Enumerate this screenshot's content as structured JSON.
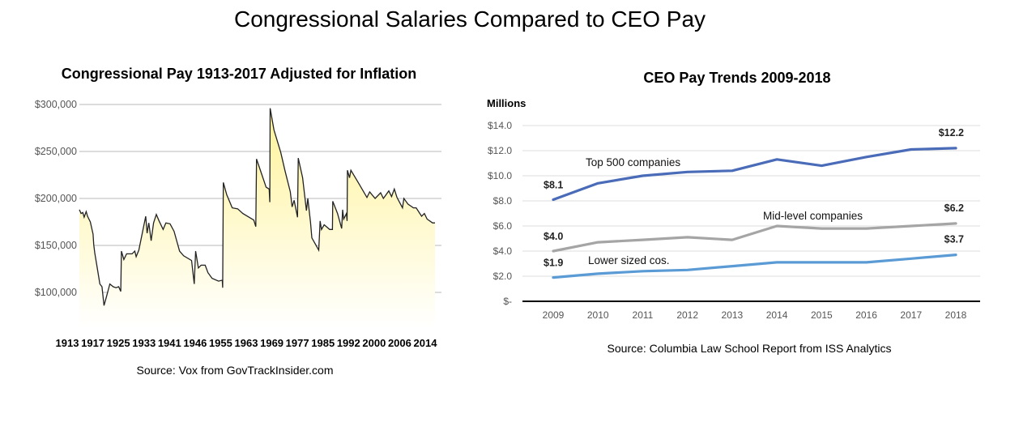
{
  "title": "Congressional Salaries Compared to CEO Pay",
  "chart_data": [
    {
      "type": "area",
      "title": "Congressional Pay 1913-2017 Adjusted for Inflation",
      "source": "Source: Vox from GovTrackInsider.com",
      "ylim": [
        60000,
        300000
      ],
      "xlim": [
        1913,
        2017
      ],
      "yticks": [
        100000,
        150000,
        200000,
        250000,
        300000
      ],
      "ytick_labels": [
        "$100,000",
        "$150,000",
        "$200,000",
        "$250,000",
        "$300,000"
      ],
      "xtick_labels": [
        "1913",
        "1917",
        "1925",
        "1933",
        "1941",
        "1946",
        "1955",
        "1963",
        "1969",
        "1977",
        "1985",
        "1992",
        "2000",
        "2006",
        "2014"
      ],
      "grid": true,
      "line_color": "#222222",
      "fill_color": "#fff6a8",
      "points": [
        [
          1913,
          188
        ],
        [
          1913.5,
          184
        ],
        [
          1914,
          185
        ],
        [
          1914.4,
          180
        ],
        [
          1915,
          186
        ],
        [
          1915.4,
          181
        ],
        [
          1916.2,
          175
        ],
        [
          1917,
          162
        ],
        [
          1917.2,
          151
        ],
        [
          1917.5,
          142
        ],
        [
          1918.1,
          129
        ],
        [
          1919,
          109
        ],
        [
          1919.6,
          106
        ],
        [
          1920.2,
          86
        ],
        [
          1920.9,
          95
        ],
        [
          1921.9,
          109
        ],
        [
          1922.9,
          106
        ],
        [
          1923.7,
          105
        ],
        [
          1924.5,
          106
        ],
        [
          1925.1,
          101
        ],
        [
          1925.3,
          144
        ],
        [
          1926,
          135
        ],
        [
          1926.8,
          141
        ],
        [
          1928.4,
          141
        ],
        [
          1929.2,
          144
        ],
        [
          1929.6,
          138
        ],
        [
          1930.4,
          145
        ],
        [
          1932.4,
          181
        ],
        [
          1932.8,
          163
        ],
        [
          1933.3,
          174
        ],
        [
          1934,
          155
        ],
        [
          1934.7,
          174
        ],
        [
          1935.5,
          183
        ],
        [
          1936.3,
          176
        ],
        [
          1937.5,
          167
        ],
        [
          1938.3,
          174
        ],
        [
          1939.5,
          173
        ],
        [
          1940.7,
          165
        ],
        [
          1942.3,
          144
        ],
        [
          1943.5,
          139
        ],
        [
          1945.8,
          134
        ],
        [
          1946.6,
          109
        ],
        [
          1947,
          144
        ],
        [
          1947.8,
          126
        ],
        [
          1948.6,
          129
        ],
        [
          1949.8,
          129
        ],
        [
          1950.6,
          121
        ],
        [
          1951.8,
          115
        ],
        [
          1953.7,
          112
        ],
        [
          1954.8,
          113
        ],
        [
          1954.9,
          105
        ],
        [
          1955.1,
          217
        ],
        [
          1956.1,
          204
        ],
        [
          1957.7,
          190
        ],
        [
          1959.3,
          189
        ],
        [
          1960.8,
          184
        ],
        [
          1964,
          177
        ],
        [
          1964.6,
          170
        ],
        [
          1964.8,
          242
        ],
        [
          1966.4,
          225
        ],
        [
          1967.6,
          212
        ],
        [
          1968.5,
          210
        ],
        [
          1968.7,
          196
        ],
        [
          1968.8,
          296
        ],
        [
          1969.9,
          273
        ],
        [
          1971.9,
          249
        ],
        [
          1973.1,
          230
        ],
        [
          1974.7,
          207
        ],
        [
          1975.2,
          191
        ],
        [
          1975.8,
          198
        ],
        [
          1976.8,
          180
        ],
        [
          1977,
          243
        ],
        [
          1978.3,
          222
        ],
        [
          1979.4,
          187
        ],
        [
          1979.8,
          200
        ],
        [
          1980.6,
          175
        ],
        [
          1981,
          158
        ],
        [
          1983,
          145
        ],
        [
          1983.4,
          176
        ],
        [
          1983.8,
          167
        ],
        [
          1984.6,
          172
        ],
        [
          1986.2,
          167
        ],
        [
          1987,
          167
        ],
        [
          1987.1,
          197
        ],
        [
          1988.5,
          184
        ],
        [
          1989.7,
          168
        ],
        [
          1990,
          188
        ],
        [
          1990.3,
          178
        ],
        [
          1991.1,
          184
        ],
        [
          1991.3,
          176
        ],
        [
          1991.4,
          230
        ],
        [
          1992,
          222
        ],
        [
          1992.4,
          230
        ],
        [
          1994.7,
          216
        ],
        [
          1997.1,
          201
        ],
        [
          1997.9,
          207
        ],
        [
          1999.5,
          200
        ],
        [
          2001.1,
          206
        ],
        [
          2001.9,
          200
        ],
        [
          2003.5,
          208
        ],
        [
          2004.3,
          202
        ],
        [
          2005.1,
          210
        ],
        [
          2005.9,
          201
        ],
        [
          2007.5,
          190
        ],
        [
          2007.9,
          200
        ],
        [
          2009.1,
          194
        ],
        [
          2010.7,
          190
        ],
        [
          2011.5,
          190
        ],
        [
          2013.1,
          181
        ],
        [
          2013.9,
          184
        ],
        [
          2014.7,
          178
        ],
        [
          2016.3,
          174
        ],
        [
          2017,
          174
        ]
      ]
    },
    {
      "type": "line",
      "title": "CEO Pay Trends 2009-2018",
      "ylabel": "Millions",
      "source": "Source: Columbia Law School Report from ISS Analytics",
      "categories": [
        "2009",
        "2010",
        "2011",
        "2012",
        "2013",
        "2014",
        "2015",
        "2016",
        "2017",
        "2018"
      ],
      "ylim": [
        0,
        14
      ],
      "yticks": [
        0,
        2,
        4,
        6,
        8,
        10,
        12,
        14
      ],
      "ytick_labels": [
        "$-",
        "$2.0",
        "$4.0",
        "$6.0",
        "$8.0",
        "$10.0",
        "$12.0",
        "$14.0"
      ],
      "grid": true,
      "series": [
        {
          "name": "Top 500 companies",
          "color": "#4a6cb8",
          "values": [
            8.1,
            9.4,
            10.0,
            10.3,
            10.4,
            11.3,
            10.8,
            11.5,
            12.1,
            12.2
          ],
          "start_label": "$8.1",
          "end_label": "$12.2"
        },
        {
          "name": "Mid-level companies",
          "color": "#a5a5a5",
          "values": [
            4.0,
            4.7,
            4.9,
            5.1,
            4.9,
            6.0,
            5.8,
            5.8,
            6.0,
            6.2
          ],
          "start_label": "$4.0",
          "end_label": "$6.2"
        },
        {
          "name": "Lower sized cos.",
          "color": "#5b9bd5",
          "values": [
            1.9,
            2.2,
            2.4,
            2.5,
            2.8,
            3.1,
            3.1,
            3.1,
            3.4,
            3.7
          ],
          "start_label": "$1.9",
          "end_label": "$3.7"
        }
      ]
    }
  ]
}
